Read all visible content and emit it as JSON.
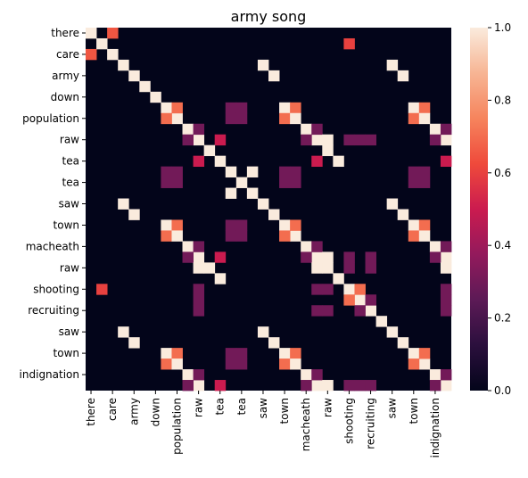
{
  "chart_data": {
    "type": "heatmap",
    "title": "army song",
    "xlabel": "",
    "ylabel": "",
    "labels": [
      "there",
      "there",
      "care",
      "care",
      "army",
      "army",
      "army",
      "down",
      "down",
      "population",
      "population",
      "raw",
      "raw",
      "tea",
      "tea",
      "tea",
      "saw",
      "saw",
      "town",
      "town",
      "macheath",
      "macheath",
      "raw",
      "raw",
      "shooting",
      "shooting",
      "recruiting",
      "recruiting",
      "saw",
      "saw",
      "town",
      "town",
      "indignation",
      "indignation"
    ],
    "x_tick_labels": [
      "there",
      "care",
      "army",
      "down",
      "population",
      "raw",
      "tea",
      "tea",
      "saw",
      "town",
      "macheath",
      "raw",
      "shooting",
      "recruiting",
      "saw",
      "town",
      "indignation"
    ],
    "y_tick_labels": [
      "there",
      "care",
      "army",
      "down",
      "population",
      "raw",
      "tea",
      "tea",
      "saw",
      "town",
      "macheath",
      "raw",
      "shooting",
      "recruiting",
      "saw",
      "town",
      "indignation"
    ],
    "colorbar": {
      "min": 0.0,
      "max": 1.0,
      "ticks": [
        "0.0",
        "0.2",
        "0.4",
        "0.6",
        "0.8",
        "1.0"
      ]
    },
    "colormap": [
      "#03051a",
      "#2b0f3d",
      "#5c1a56",
      "#931a5c",
      "#cb1b4f",
      "#ef4a3b",
      "#f6845d",
      "#f7b594",
      "#faebdd"
    ],
    "nonzero_cells": [
      [
        0,
        0,
        1.0
      ],
      [
        0,
        2,
        0.65
      ],
      [
        2,
        0,
        0.65
      ],
      [
        1,
        1,
        1.0
      ],
      [
        1,
        24,
        0.6
      ],
      [
        24,
        1,
        0.6
      ],
      [
        2,
        2,
        1.0
      ],
      [
        3,
        3,
        1.0
      ],
      [
        4,
        4,
        1.0
      ],
      [
        5,
        5,
        1.0
      ],
      [
        6,
        6,
        1.0
      ],
      [
        3,
        16,
        1.0
      ],
      [
        16,
        3,
        1.0
      ],
      [
        3,
        28,
        1.0
      ],
      [
        28,
        3,
        1.0
      ],
      [
        16,
        28,
        1.0
      ],
      [
        28,
        16,
        1.0
      ],
      [
        7,
        7,
        1.0
      ],
      [
        8,
        8,
        1.0
      ],
      [
        7,
        8,
        0.7
      ],
      [
        8,
        7,
        0.7
      ],
      [
        7,
        18,
        1.0
      ],
      [
        7,
        19,
        0.7
      ],
      [
        8,
        18,
        0.7
      ],
      [
        8,
        19,
        1.0
      ],
      [
        18,
        7,
        1.0
      ],
      [
        19,
        7,
        0.7
      ],
      [
        18,
        8,
        0.7
      ],
      [
        19,
        8,
        1.0
      ],
      [
        7,
        30,
        1.0
      ],
      [
        7,
        31,
        0.7
      ],
      [
        8,
        30,
        0.7
      ],
      [
        8,
        31,
        1.0
      ],
      [
        30,
        7,
        1.0
      ],
      [
        31,
        7,
        0.7
      ],
      [
        30,
        8,
        0.7
      ],
      [
        31,
        8,
        1.0
      ],
      [
        18,
        30,
        1.0
      ],
      [
        18,
        31,
        0.7
      ],
      [
        19,
        30,
        0.7
      ],
      [
        19,
        31,
        1.0
      ],
      [
        30,
        18,
        1.0
      ],
      [
        31,
        18,
        0.7
      ],
      [
        30,
        19,
        0.7
      ],
      [
        31,
        19,
        1.0
      ],
      [
        18,
        18,
        1.0
      ],
      [
        19,
        19,
        1.0
      ],
      [
        30,
        30,
        1.0
      ],
      [
        31,
        31,
        1.0
      ],
      [
        18,
        19,
        0.7
      ],
      [
        19,
        18,
        0.7
      ],
      [
        30,
        31,
        0.7
      ],
      [
        31,
        30,
        0.7
      ],
      [
        7,
        13,
        0.3
      ],
      [
        8,
        13,
        0.3
      ],
      [
        7,
        14,
        0.3
      ],
      [
        8,
        14,
        0.3
      ],
      [
        13,
        7,
        0.3
      ],
      [
        14,
        7,
        0.3
      ],
      [
        13,
        8,
        0.3
      ],
      [
        14,
        8,
        0.3
      ],
      [
        18,
        13,
        0.3
      ],
      [
        19,
        13,
        0.3
      ],
      [
        18,
        14,
        0.3
      ],
      [
        19,
        14,
        0.3
      ],
      [
        13,
        18,
        0.3
      ],
      [
        14,
        18,
        0.3
      ],
      [
        13,
        19,
        0.3
      ],
      [
        14,
        19,
        0.3
      ],
      [
        30,
        13,
        0.3
      ],
      [
        31,
        13,
        0.3
      ],
      [
        30,
        14,
        0.3
      ],
      [
        31,
        14,
        0.3
      ],
      [
        13,
        30,
        0.3
      ],
      [
        14,
        30,
        0.3
      ],
      [
        13,
        31,
        0.3
      ],
      [
        14,
        31,
        0.3
      ],
      [
        13,
        13,
        1.0
      ],
      [
        14,
        14,
        1.0
      ],
      [
        15,
        15,
        1.0
      ],
      [
        13,
        15,
        1.0
      ],
      [
        15,
        13,
        1.0
      ],
      [
        14,
        15,
        0.0
      ],
      [
        9,
        9,
        1.0
      ],
      [
        10,
        10,
        1.0
      ],
      [
        9,
        10,
        0.3
      ],
      [
        10,
        9,
        0.3
      ],
      [
        9,
        20,
        1.0
      ],
      [
        20,
        9,
        1.0
      ],
      [
        10,
        21,
        1.0
      ],
      [
        21,
        10,
        1.0
      ],
      [
        9,
        32,
        1.0
      ],
      [
        32,
        9,
        1.0
      ],
      [
        10,
        33,
        1.0
      ],
      [
        33,
        10,
        1.0
      ],
      [
        20,
        20,
        1.0
      ],
      [
        21,
        21,
        1.0
      ],
      [
        32,
        32,
        1.0
      ],
      [
        33,
        33,
        1.0
      ],
      [
        20,
        32,
        1.0
      ],
      [
        32,
        20,
        1.0
      ],
      [
        21,
        33,
        1.0
      ],
      [
        33,
        21,
        1.0
      ],
      [
        9,
        21,
        0.3
      ],
      [
        21,
        9,
        0.3
      ],
      [
        10,
        20,
        0.3
      ],
      [
        20,
        10,
        0.3
      ],
      [
        9,
        33,
        0.3
      ],
      [
        33,
        9,
        0.3
      ],
      [
        10,
        32,
        0.3
      ],
      [
        32,
        10,
        0.3
      ],
      [
        20,
        21,
        0.3
      ],
      [
        21,
        20,
        0.3
      ],
      [
        20,
        33,
        0.3
      ],
      [
        33,
        20,
        0.3
      ],
      [
        21,
        32,
        0.3
      ],
      [
        32,
        21,
        0.3
      ],
      [
        32,
        33,
        0.3
      ],
      [
        33,
        32,
        0.3
      ],
      [
        10,
        12,
        0.5
      ],
      [
        12,
        10,
        0.5
      ],
      [
        21,
        12,
        0.5
      ],
      [
        12,
        21,
        0.5
      ],
      [
        33,
        12,
        0.5
      ],
      [
        12,
        33,
        0.5
      ],
      [
        11,
        11,
        1.0
      ],
      [
        12,
        12,
        1.0
      ],
      [
        22,
        22,
        1.0
      ],
      [
        23,
        23,
        1.0
      ],
      [
        11,
        22,
        1.0
      ],
      [
        22,
        11,
        1.0
      ],
      [
        12,
        23,
        1.0
      ],
      [
        23,
        12,
        1.0
      ],
      [
        10,
        22,
        1.0
      ],
      [
        22,
        10,
        1.0
      ],
      [
        21,
        22,
        1.0
      ],
      [
        22,
        21,
        1.0
      ],
      [
        33,
        22,
        1.0
      ],
      [
        22,
        33,
        1.0
      ],
      [
        10,
        24,
        0.3
      ],
      [
        24,
        10,
        0.3
      ],
      [
        21,
        24,
        0.3
      ],
      [
        24,
        21,
        0.3
      ],
      [
        33,
        24,
        0.3
      ],
      [
        24,
        33,
        0.3
      ],
      [
        10,
        26,
        0.3
      ],
      [
        26,
        10,
        0.3
      ],
      [
        21,
        26,
        0.3
      ],
      [
        26,
        21,
        0.3
      ],
      [
        33,
        26,
        0.3
      ],
      [
        26,
        33,
        0.3
      ],
      [
        22,
        24,
        0.3
      ],
      [
        24,
        22,
        0.3
      ],
      [
        22,
        26,
        0.3
      ],
      [
        26,
        22,
        0.3
      ],
      [
        10,
        25,
        0.3
      ],
      [
        25,
        10,
        0.3
      ],
      [
        33,
        25,
        0.3
      ],
      [
        25,
        33,
        0.3
      ],
      [
        24,
        24,
        1.0
      ],
      [
        25,
        25,
        1.0
      ],
      [
        24,
        25,
        0.7
      ],
      [
        25,
        24,
        0.7
      ],
      [
        26,
        26,
        1.0
      ],
      [
        27,
        27,
        1.0
      ],
      [
        26,
        25,
        0.3
      ],
      [
        25,
        26,
        0.3
      ],
      [
        29,
        29,
        1.0
      ],
      [
        17,
        17,
        1.0
      ],
      [
        17,
        29,
        1.0
      ],
      [
        29,
        17,
        1.0
      ],
      [
        4,
        29,
        1.0
      ],
      [
        29,
        4,
        1.0
      ],
      [
        4,
        17,
        1.0
      ],
      [
        17,
        4,
        1.0
      ],
      [
        28,
        28,
        1.0
      ],
      [
        16,
        16,
        1.0
      ],
      [
        3,
        3,
        1.0
      ]
    ]
  }
}
